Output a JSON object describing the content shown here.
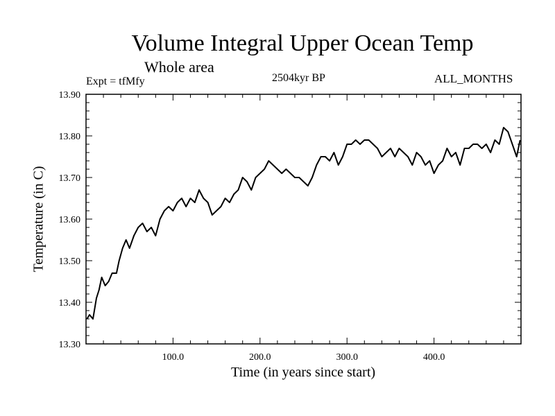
{
  "chart_data": {
    "type": "line",
    "title": "Volume Integral Upper Ocean Temp",
    "subtitle": "Whole area",
    "annotations": {
      "left": "Expt = tfMfy",
      "center": "2504kyr BP",
      "right": "ALL_MONTHS"
    },
    "xlabel": "Time (in years since start)",
    "ylabel": "Temperature (in C)",
    "xlim": [
      0,
      500
    ],
    "ylim": [
      13.3,
      13.9
    ],
    "x_ticks": [
      100,
      200,
      300,
      400
    ],
    "x_tick_labels": [
      "100.0",
      "200.0",
      "300.0",
      "400.0"
    ],
    "y_ticks": [
      13.3,
      13.4,
      13.5,
      13.6,
      13.7,
      13.8,
      13.9
    ],
    "y_tick_labels": [
      "13.30",
      "13.40",
      "13.50",
      "13.60",
      "13.70",
      "13.80",
      "13.90"
    ],
    "series": [
      {
        "name": "Temperature",
        "x": [
          1,
          4,
          8,
          12,
          15,
          18,
          22,
          26,
          30,
          35,
          38,
          42,
          46,
          50,
          55,
          60,
          65,
          70,
          75,
          80,
          85,
          90,
          95,
          100,
          105,
          110,
          115,
          120,
          125,
          130,
          135,
          140,
          145,
          150,
          155,
          160,
          165,
          170,
          175,
          180,
          185,
          190,
          195,
          200,
          205,
          210,
          215,
          220,
          225,
          230,
          235,
          240,
          245,
          250,
          255,
          260,
          265,
          270,
          275,
          280,
          285,
          290,
          295,
          300,
          305,
          310,
          315,
          320,
          325,
          330,
          335,
          340,
          345,
          350,
          355,
          360,
          365,
          370,
          375,
          380,
          385,
          390,
          395,
          400,
          405,
          410,
          415,
          420,
          425,
          430,
          435,
          440,
          445,
          450,
          455,
          460,
          465,
          470,
          475,
          480,
          485,
          490,
          495,
          499
        ],
        "values": [
          13.36,
          13.37,
          13.36,
          13.41,
          13.43,
          13.46,
          13.44,
          13.45,
          13.47,
          13.47,
          13.5,
          13.53,
          13.55,
          13.53,
          13.56,
          13.58,
          13.59,
          13.57,
          13.58,
          13.56,
          13.6,
          13.62,
          13.63,
          13.62,
          13.64,
          13.65,
          13.63,
          13.65,
          13.64,
          13.67,
          13.65,
          13.64,
          13.61,
          13.62,
          13.63,
          13.65,
          13.64,
          13.66,
          13.67,
          13.7,
          13.69,
          13.67,
          13.7,
          13.71,
          13.72,
          13.74,
          13.73,
          13.72,
          13.71,
          13.72,
          13.71,
          13.7,
          13.7,
          13.69,
          13.68,
          13.7,
          13.73,
          13.75,
          13.75,
          13.74,
          13.76,
          13.73,
          13.75,
          13.78,
          13.78,
          13.79,
          13.78,
          13.79,
          13.79,
          13.78,
          13.77,
          13.75,
          13.76,
          13.77,
          13.75,
          13.77,
          13.76,
          13.75,
          13.73,
          13.76,
          13.75,
          13.73,
          13.74,
          13.71,
          13.73,
          13.74,
          13.77,
          13.75,
          13.76,
          13.73,
          13.77,
          13.77,
          13.78,
          13.78,
          13.77,
          13.78,
          13.76,
          13.79,
          13.78,
          13.82,
          13.81,
          13.78,
          13.75,
          13.79
        ]
      }
    ]
  }
}
